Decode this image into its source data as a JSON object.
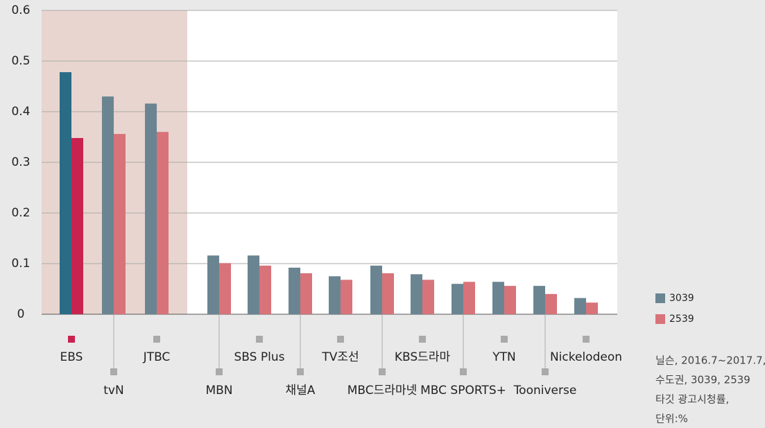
{
  "chart_data": {
    "type": "bar",
    "categories": [
      "EBS",
      "tvN",
      "JTBC",
      "MBN",
      "SBS Plus",
      "채널A",
      "TV조선",
      "MBC드라마넷",
      "KBS드라마",
      "MBC SPORTS+",
      "YTN",
      "Tooniverse",
      "Nickelodeon"
    ],
    "series": [
      {
        "name": "3039",
        "color": "#6a8591",
        "highlight_color": "#2a6b85",
        "values": [
          0.478,
          0.43,
          0.416,
          0.116,
          0.116,
          0.092,
          0.075,
          0.096,
          0.079,
          0.06,
          0.064,
          0.056,
          0.032
        ]
      },
      {
        "name": "2539",
        "color": "#d8737a",
        "highlight_color": "#c8234e",
        "values": [
          0.348,
          0.356,
          0.36,
          0.101,
          0.096,
          0.081,
          0.068,
          0.081,
          0.068,
          0.064,
          0.056,
          0.04,
          0.023
        ]
      }
    ],
    "ylim": [
      0,
      0.6
    ],
    "yticks": [
      0,
      0.1,
      0.2,
      0.3,
      0.4,
      0.5,
      0.6
    ],
    "grid": true,
    "note": [
      "닐슨, 2016.7~2017.7,",
      "수도권, 3039, 2539",
      "타깃 광고시청률,",
      "단위:%"
    ]
  }
}
